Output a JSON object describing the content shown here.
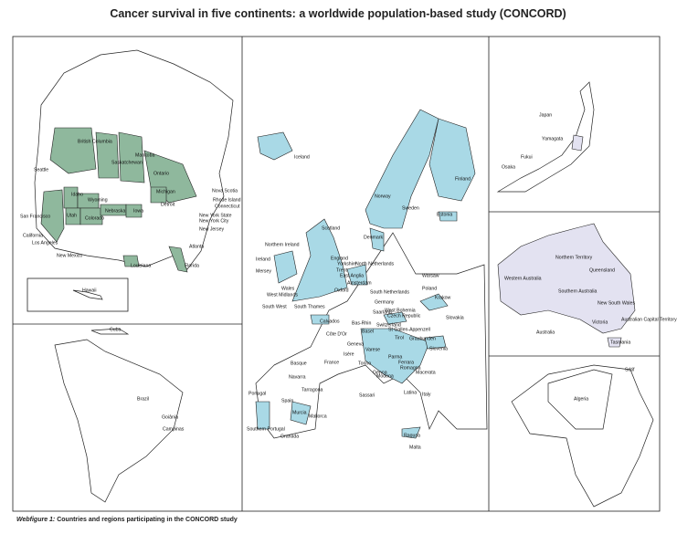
{
  "title": "Cancer survival in five continents: a worldwide population-based study (CONCORD)",
  "caption": {
    "label": "Webfigure 1:",
    "text": "Countries and regions participating in the CONCORD study"
  },
  "panels": [
    {
      "labels": [
        "British Columbia",
        "Saskatchewan",
        "Manitoba",
        "Ontario",
        "Seattle",
        "Idaho",
        "Wyoming",
        "Michigan",
        "Nova Scotia",
        "Utah",
        "Nebraska",
        "Iowa",
        "Detroit",
        "Rhode Island",
        "Connecticut",
        "San Francisco",
        "Colorado",
        "New York State",
        "New York City",
        "California",
        "Los Angeles",
        "New Jersey",
        "Atlanta",
        "New Mexico",
        "Louisiana",
        "Florida",
        "Hawaii"
      ]
    },
    {
      "labels": [
        "Cuba",
        "Brazil",
        "Goiânia",
        "Campinas"
      ]
    },
    {
      "labels": [
        "Iceland",
        "Finland",
        "Norway",
        "Sweden",
        "Estonia",
        "Scotland",
        "Denmark",
        "Northern Ireland",
        "Ireland",
        "England",
        "Yorkshire",
        "North Netherlands",
        "Mersey",
        "Trent",
        "East Anglia",
        "Oxford",
        "Amsterdam",
        "Warsaw",
        "Wales",
        "West Midlands",
        "South Netherlands",
        "Poland",
        "Krakow",
        "South West",
        "South Thames",
        "Germany",
        "Saarland",
        "West Bohemia",
        "Czech Republic",
        "Calvados",
        "Bas-Rhin",
        "Switzerland",
        "St Gallen-Appenzell",
        "Slovakia",
        "Côte D'Or",
        "Basel",
        "Graubunden",
        "Tirol",
        "Slovenia",
        "Geneva",
        "Isère",
        "Varese",
        "Torino",
        "Parma",
        "Ferrara",
        "Romagna",
        "Genoa",
        "Modena",
        "Macerata",
        "France",
        "Basque",
        "Navarra",
        "Tarragona",
        "Portugal",
        "Spain",
        "Sassari",
        "Latina",
        "Italy",
        "Murcia",
        "Mallorca",
        "Southern Portugal",
        "Granada",
        "Ragusa",
        "Malta"
      ]
    },
    {
      "labels": [
        "Japan",
        "Yamagata",
        "Fukui",
        "Osaka"
      ]
    },
    {
      "labels": [
        "Northern Territory",
        "Queensland",
        "Western Australia",
        "Southern Australia",
        "New South Wales",
        "Victoria",
        "Australian Capital Territory",
        "Australia",
        "Tasmania"
      ]
    },
    {
      "labels": [
        "Sétif",
        "Algeria"
      ]
    }
  ]
}
